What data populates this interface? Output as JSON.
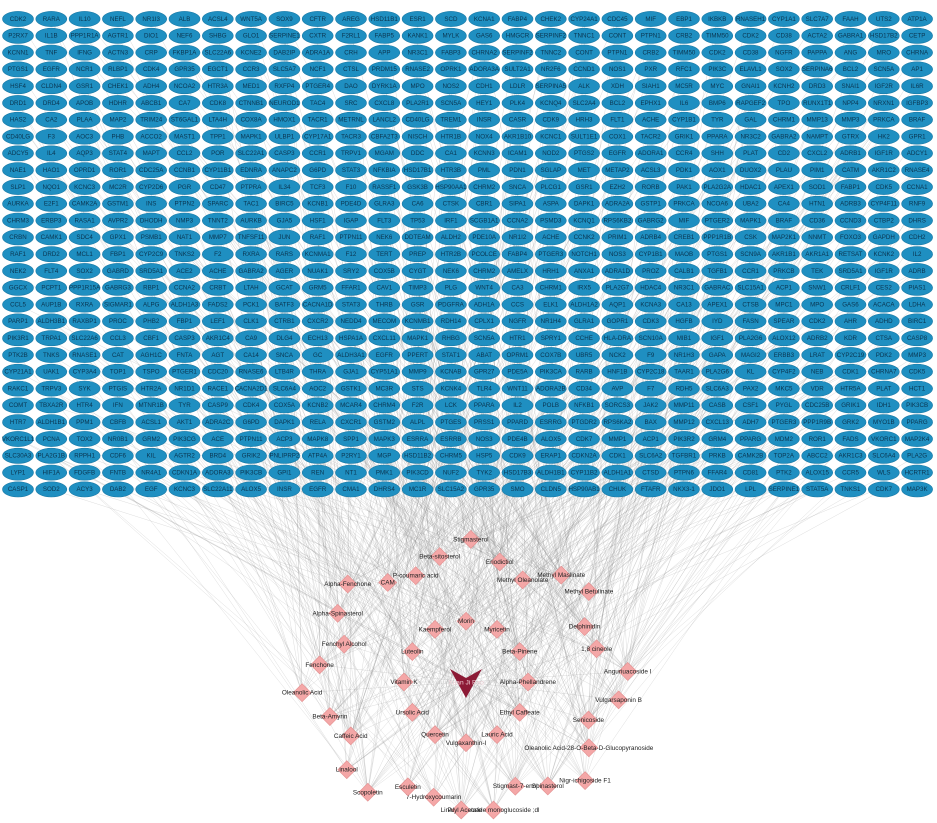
{
  "network": {
    "colors": {
      "target": "#1f8fc1",
      "compound": "#f4a7a7",
      "herb": "#8c1a35",
      "edge": "#8a8a8a"
    },
    "herb": {
      "label": "Xuan Ji Bao",
      "shape": "arrowhead"
    },
    "targets": [
      [
        "CDK2",
        "RARA",
        "IL10",
        "NEFL",
        "NR1I3",
        "ALB",
        "ACSL4",
        "WNT5A",
        "SOX9",
        "CFTR",
        "AREG",
        "HSD11B1",
        "ESR1",
        "SCD",
        "KCNA1",
        "FABP4",
        "CHEK2",
        "CYP24A1",
        "CDC45",
        "MIF",
        "EBP1",
        "IKBKB",
        "RNASEH1",
        "CYP1A1",
        "SLC7A7",
        "FAAH",
        "UTS2",
        "ATP1A"
      ],
      [
        "P2RX7",
        "IL1B",
        "PPP1R1A",
        "AGTR1",
        "DIO1",
        "NEF6",
        "SHBG",
        "GLO1",
        "SERPINE1",
        "CXTR",
        "F2RL1",
        "FABP5",
        "KANK1",
        "MYLK",
        "GAS6",
        "HMGCR",
        "SERPINF2",
        "TNNC1",
        "CONT",
        "PTPN1",
        "CRB2",
        "TIMM50",
        "CDK2",
        "CD38",
        "ACTA2",
        "GABRA1",
        "HSD17B2",
        "CETP"
      ],
      [
        "KCNN1",
        "TNF",
        "IFNG",
        "ACTN3",
        "CRP",
        "FKBP1A",
        "SLC22A6",
        "KCNE2",
        "DAB2IP",
        "ADRA1A",
        "CRH",
        "APP",
        "NR3C1",
        "FABP3",
        "CHRNA2",
        "SERPINF2",
        "TNNC2",
        "CONT",
        "PTPN1",
        "CRB2",
        "TIMM50",
        "CDK2",
        "CD38",
        "NGFR",
        "PAPPA",
        "ANG",
        "MRO",
        "CHRNA"
      ],
      [
        "PTGS1",
        "EGFR",
        "NCR1",
        "RLBP1",
        "CDK4",
        "GPR35",
        "EGCT1",
        "CCR3",
        "SLC5A7",
        "NCF1",
        "CTSL",
        "PRDM15",
        "RNASE2",
        "OPRK1",
        "ADORA3A",
        "SULT2A1",
        "NR2F6",
        "CCND1",
        "NOS1",
        "PXR",
        "RFC1",
        "PIK3C",
        "ELAVL1",
        "SOX2",
        "SERPINA6",
        "BCL2",
        "SCN5A",
        "AP1"
      ],
      [
        "HSF4",
        "CLDN4",
        "GSR1",
        "CHEK1",
        "ADH4",
        "NCOA2",
        "HTR3A",
        "MED1",
        "RXFP4",
        "PTGER4",
        "DAO",
        "DYRK1A",
        "MPO",
        "NOS2",
        "CDH1",
        "LDLR",
        "SERPINA5",
        "ALK",
        "XDH",
        "SIAH1",
        "MC5R",
        "MYC",
        "GNAI1",
        "KCNH2",
        "DRD3",
        "SNAI1",
        "IGF2R",
        "IL6R"
      ],
      [
        "DRD1",
        "DRD4",
        "APOB",
        "HDHR",
        "ABCB1",
        "CA7",
        "CDK8",
        "CTNNB1",
        "NEUROD1",
        "TAC4",
        "SRC",
        "CXCL8",
        "PLA2R1",
        "SCN5A",
        "HEY1",
        "PLK4",
        "KCNQ4",
        "SLC2A4",
        "BCL2",
        "EPHX1",
        "IL6",
        "BMP6",
        "RAPGEF2",
        "TPO",
        "RUNX1T1",
        "NPP4",
        "NRXN1",
        "IGFBP3"
      ],
      [
        "HAS2",
        "CA2",
        "PLAA",
        "MAP2",
        "TRIM24",
        "ST6GAL1",
        "LTA4H",
        "COX8A",
        "HMOX1",
        "TACR1",
        "METRNL",
        "LANCL2",
        "CD40LG",
        "TREM1",
        "INSR",
        "CASR",
        "CDK9",
        "HRH3",
        "FLT1",
        "ACHE",
        "CYP1B1",
        "TYR",
        "GAL",
        "CHRM1",
        "MMP13",
        "MMP3",
        "PRKCA",
        "BRAF"
      ],
      [
        "CD40LG",
        "F3",
        "AOC3",
        "PHB",
        "ACCO2",
        "MAST1",
        "TPP1",
        "MAPK1",
        "ULBP1",
        "CYP17A1",
        "TACR3",
        "CBFA2T3",
        "NISCH",
        "HTR1B",
        "NOX4",
        "AKR1B10",
        "KCNC1",
        "SULT1E1",
        "COX1",
        "TACR2",
        "GRIK1",
        "PPARA",
        "NR3C2",
        "GABRA2",
        "NAMPT",
        "GTRX",
        "HK2",
        "GPR1"
      ],
      [
        "ADCY5",
        "IL4",
        "AQP3",
        "STAT4",
        "MAPT",
        "CCL2",
        "POR",
        "SLC22A1",
        "CASP3",
        "CCR1",
        "TRPV1",
        "MGAM",
        "DDC",
        "CA1",
        "KCNN3",
        "ICAM1",
        "NOD2",
        "PTGS2",
        "EGFR",
        "ADORA1",
        "CCR4",
        "SHH",
        "PLAT",
        "CD2",
        "CXCL2",
        "ADRB1",
        "IGF1R",
        "ADCY1"
      ],
      [
        "NAE1",
        "HAO1",
        "OPRD1",
        "ROR1",
        "CDC25A",
        "CCNB1",
        "CYP11B1",
        "EDNRA",
        "ANAPC2",
        "G6PD",
        "STAT3",
        "NFKBIA",
        "HSD17B1",
        "HTR3B",
        "PML",
        "PDN1",
        "SGLAP",
        "MET",
        "METAP2",
        "ACSL3",
        "PDK1",
        "AOX1",
        "DUOX2",
        "PLAU",
        "PIM1",
        "CATM",
        "AKR1C2",
        "RNASE4"
      ],
      [
        "SLP1",
        "NQO1",
        "KCNC3",
        "MC2R",
        "CYP2D6",
        "PGR",
        "CD47",
        "PTPRA",
        "IL34",
        "TCF3",
        "F10",
        "RASSF1",
        "GSK3B",
        "HSP90AA1",
        "CHRM2",
        "SNCA",
        "PLCG1",
        "GSR1",
        "EZH2",
        "RORB",
        "PAK1",
        "PLA2G2A",
        "HDAC1",
        "APEX1",
        "SOD1",
        "FABP1",
        "CDK5",
        "CCNA1"
      ],
      [
        "AURKA",
        "E2F1",
        "CAMK2A",
        "GSTM1",
        "INS",
        "PTPN2",
        "SPARC",
        "TAC1",
        "BIRC5",
        "KCNB1",
        "PDE4D",
        "GLRA3",
        "CA6",
        "CTSK",
        "CBR1",
        "SIPA1",
        "ASPA",
        "DAPK1",
        "ADRA2A",
        "GSTP1",
        "PRKCA",
        "NCOA6",
        "UBA2",
        "CA4",
        "HTN1",
        "ADRB3",
        "CYP4F11",
        "RNF9"
      ],
      [
        "CHRM3",
        "ERBP3",
        "RASA1",
        "AVPR2",
        "DHODH",
        "NMP3",
        "TNNT2",
        "AURKB",
        "GJA5",
        "HSF1",
        "IGAP",
        "FLT3",
        "TP53",
        "IRF1",
        "SCGB1A1",
        "CCNA2",
        "PSMD3",
        "KCNQ1",
        "RPS6KB2",
        "GABRG2",
        "MIF",
        "PTGER2",
        "MAPK1",
        "BRAF",
        "CD36",
        "CCND3",
        "CTBP2",
        "DHRS"
      ],
      [
        "CRBN",
        "CAMK1",
        "SDC4",
        "GPX1",
        "PSMB1",
        "NAT1",
        "MMP7",
        "TNFSF11",
        "JUN",
        "RAF1",
        "PTPN11",
        "NEK6",
        "DDTEAM",
        "ALDH2",
        "PDE10A",
        "NR1I2",
        "ACHE",
        "CCNK2",
        "PRIM1",
        "ADRB4",
        "CREB1",
        "PPP1R1B",
        "CSK",
        "MAP2K1",
        "NNMT",
        "FOXO3",
        "GAPDH",
        "CDH2"
      ],
      [
        "RAF1",
        "DRD2",
        "MCL1",
        "FBP1",
        "CYP2C9",
        "TNKS2",
        "F2",
        "RXRA",
        "RARS",
        "KCNMA1",
        "F12",
        "TERT",
        "PREP",
        "HTR2B",
        "PCOLCE",
        "FABP4",
        "PTGER3",
        "NOTCH1",
        "NOS3",
        "CYP1B1",
        "MAOB",
        "PTGS1",
        "SCN9A",
        "AKR1B1",
        "AKR1A1",
        "RETSAT",
        "KCNK2",
        "IL2"
      ],
      [
        "NEK2",
        "FLT4",
        "SOX2",
        "GABRD",
        "SRD5A1",
        "ACE2",
        "ACHE",
        "GABRA2",
        "AGER",
        "NUAK1",
        "SRY2",
        "COX5B",
        "CYGT",
        "NEK6",
        "CHRM2",
        "AMELX",
        "HRH1",
        "ANXA1",
        "ADRA1D",
        "PROZ",
        "CALB1",
        "TGFB1",
        "CCR1",
        "PRKCB",
        "TEK",
        "SRD5A1",
        "IGF1R",
        "ADRB"
      ],
      [
        "GGCX",
        "PCPT1",
        "PPP1R15A",
        "GABRG3",
        "RBP1",
        "CCNA2",
        "CRBT",
        "LTAH",
        "GCAT",
        "GRM5",
        "FFAR1",
        "CAV1",
        "TIMP3",
        "PLG",
        "WNT4",
        "CA3",
        "CHRM1",
        "IRX5",
        "PLA2G7",
        "HDAC4",
        "NR3C1",
        "GABRAC",
        "SLC15A1",
        "ACP1",
        "SNW1",
        "CRLF1",
        "CES2",
        "PIAS1"
      ],
      [
        "CCL5",
        "AUP1B",
        "RXRA",
        "SIGMAR1",
        "ALPG",
        "ALDH1A3",
        "FADS2",
        "PCK1",
        "BATF3",
        "CACNA1D",
        "STAT3",
        "THRB",
        "GSR",
        "PDGFRA",
        "ADH1A",
        "CCS",
        "ELK1",
        "ALDH1A2",
        "AQP1",
        "KCNA3",
        "CA13",
        "APEX1",
        "CTSB",
        "MPC1",
        "MPO",
        "GAS6",
        "ACACA",
        "LDHA"
      ],
      [
        "PARP1",
        "ALDH3B1",
        "RAXBP1",
        "PROC",
        "PHB2",
        "FBP1",
        "LEF1",
        "CLK1",
        "CTRB1",
        "CXCR2",
        "NEDD4",
        "MECOM",
        "KCNMB1",
        "RDH14",
        "CPLX1",
        "NGFR",
        "NR1H4",
        "GLRA1",
        "GOPR1",
        "CDK3",
        "HGFB",
        "IYD",
        "FASN",
        "SPEAR",
        "CDK2",
        "AHR",
        "ADHD",
        "BIRC1"
      ],
      [
        "PIK3R1",
        "TRPA1",
        "SLC22A6",
        "CCL3",
        "CBF1",
        "CASP3",
        "AKR1C4",
        "CA9",
        "DLG4",
        "ECH13",
        "HSPA1A",
        "CXCL11",
        "MAPK1",
        "RHBG",
        "SCN5A",
        "HTR1",
        "SPRY1",
        "CCHE",
        "HLA-DRA",
        "SCN10A",
        "MIB1",
        "IGF1",
        "PLA2G6",
        "ALOX12",
        "ADRB2",
        "KDR",
        "CTSA",
        "CASP8"
      ],
      [
        "PTK2B",
        "TNKS",
        "RNASE1",
        "CAT",
        "AGH1C",
        "FNTA",
        "AGT",
        "CA14",
        "SNCA",
        "GC",
        "ALDH3A1",
        "EGFR",
        "PPERT",
        "STAT1",
        "ABAT",
        "OPRM1",
        "COX7B",
        "UBR5",
        "NCK2",
        "F9",
        "NR1H3",
        "GAPA",
        "MAGI2",
        "ERBB3",
        "LRAT",
        "CYP2C19",
        "PDK2",
        "MMP3"
      ],
      [
        "CYP21A1",
        "UAK1",
        "CYP3A4",
        "TOP1",
        "TSPO",
        "PTGER1",
        "CDC20",
        "RNASE6",
        "LTB4R",
        "THRA",
        "GJA1",
        "CYP51A1",
        "MMP9",
        "KCNAB",
        "GPR27",
        "PDE5A",
        "PIK3CA",
        "RARB",
        "HNF1B",
        "CYP2C18",
        "TAAR1",
        "PLA2G6",
        "KL",
        "CYP4F2",
        "NEB",
        "CDK1",
        "CHRNA7",
        "CDK5"
      ],
      [
        "RAKC1",
        "TRPV3",
        "SYK",
        "PTGIS",
        "HTR2A",
        "NR1D1",
        "RACE1",
        "CACNA2D1",
        "SLC6A4",
        "AOC2",
        "GSTK1",
        "MC3R",
        "STS",
        "KCNK4",
        "TLR4",
        "WNT11",
        "ADORA2B",
        "CD34",
        "AVP",
        "F7",
        "RDH5",
        "SLC6A3",
        "PAX2",
        "MKC5",
        "VDR",
        "HTR5A",
        "PLAT",
        "HCT1"
      ],
      [
        "COMT",
        "TBXA2R",
        "HTR4",
        "IFN",
        "MTNR1B",
        "TYR",
        "CASP9",
        "CDK4",
        "COX5A",
        "KCNB2",
        "MCAR4",
        "CHRM4",
        "F2R",
        "LCK",
        "PPARA",
        "IL2",
        "POLB",
        "NFKB1",
        "SORCS3",
        "JAK2",
        "MMP11",
        "CASB",
        "CSF1",
        "PYGL",
        "CDC25B",
        "GRIK1",
        "IDH1",
        "PIK3CB"
      ],
      [
        "HTR7",
        "ALDH1B1",
        "PPM1",
        "CBFB",
        "ACSL1",
        "AKT1",
        "ADRA2C",
        "G6PD",
        "DAPK1",
        "RELA",
        "CXCR1",
        "GSTM2",
        "ALPL",
        "PTGES",
        "PRSS1",
        "PPARD",
        "ESRRG",
        "PTGDR2",
        "RPS6KA2",
        "BAX",
        "MMP12",
        "CXCL13",
        "ADH7",
        "PTGER3",
        "PPP1R9B",
        "GRK2",
        "MYO1B",
        "PPARG"
      ],
      [
        "VKORC1L1",
        "PCNA",
        "TOX2",
        "NR0B1",
        "GRM2",
        "PIK3CG",
        "ACE",
        "PTPN11",
        "ACP3",
        "MAPK8",
        "SPP1",
        "MAPK3",
        "ESRRA",
        "ESRRB",
        "NOS3",
        "PDE4B",
        "ALOX5",
        "CDK7",
        "MMP1",
        "ACP1",
        "PIK3R2",
        "GRM4",
        "PPARG",
        "MDM2",
        "ROR1",
        "FADS",
        "VKORC1",
        "MAP2K4"
      ],
      [
        "SLC30A3",
        "PLA2G1B",
        "RPPH1",
        "CDF6",
        "KIL",
        "AGTR2",
        "BRD4",
        "GRIK2",
        "PNLIPRP2",
        "ATP4A",
        "P2RY1",
        "MGP",
        "HSD11B2",
        "CHRM5",
        "HSP5",
        "CDK9",
        "ERAP1",
        "CDKN2A",
        "CDK1",
        "SLC6A2",
        "TGFBR1",
        "PRKB",
        "CAMK2B",
        "TOP2A",
        "ABCC2",
        "AKR1C3",
        "SLC6A4",
        "PLA2G"
      ],
      [
        "LYP1",
        "HIF1A",
        "FDGFB",
        "FNTB",
        "NR4A1",
        "CDKN1A",
        "ADORA3",
        "PIK3CB",
        "GPI1",
        "REN",
        "NT1",
        "PMK1",
        "PIK3CD",
        "NUF2",
        "TYK2",
        "HSD17B3",
        "ALDH1B1",
        "CYP11B2",
        "ALDH1A1",
        "CTSD",
        "PTPN6",
        "FFAR4",
        "CD81",
        "PTK2",
        "ALOX15",
        "CCR5",
        "WLS",
        "HCRTR1"
      ],
      [
        "CASP1",
        "SOD2",
        "ACY3",
        "DAB2",
        "EGF",
        "KCNC3",
        "SLC22A11",
        "ALOX5",
        "INSR",
        "EGFR",
        "CMA1",
        "DHRS4",
        "MC1R",
        "SLC15A2",
        "GPR35",
        "SMO",
        "CLDN5",
        "HSP90AB1",
        "CHUK",
        "FTAFR",
        "NKX3-1",
        "JDO1",
        "LPL",
        "SERPINE1",
        "STAT5A",
        "TNKS1",
        "CDK7",
        "MAP3K"
      ]
    ],
    "compounds": [
      "Beta-sitosterol",
      "Stigmasterol",
      "Eriodictiol",
      "Methyl Oleanolate",
      "Methyl Maslinate",
      "Methyl Betulinate",
      "Delphinidin",
      "1,8 cineole",
      "Anguriuacoside I",
      "Vulgarsaponin B",
      "Senicoside",
      "Oleanolic Acid-28-O-Beta-D-Glucopyranoside",
      "Nigr-ichigoside F1",
      "Spinasterol",
      "Stigmast-7-enol",
      "Portulacoside monoglucoside ;dl",
      "Linalyl Acetate",
      "7-Hydroxycoumarin",
      "Esculetin",
      "Scopoletin",
      "Linalool",
      "Caffeic Acid",
      "Beta-Amyrin",
      "Oleanolic Acid",
      "Fenchone",
      "Fenchyl Alcohol",
      "Alpha-Spinasterol",
      "Alpha-Fenchone",
      "CAM",
      "P-coumaric acid"
    ],
    "inner_compounds": [
      "Morin",
      "Myricetin",
      "Beta-Pinene",
      "Alpha-Phellandrene",
      "Ethyl Caffeate",
      "Lauric Acid",
      "Vulgaxanthin-I",
      "Quercetin",
      "Ursolic Acid",
      "Vitamin K",
      "Luteolin",
      "Kaempferol"
    ]
  }
}
